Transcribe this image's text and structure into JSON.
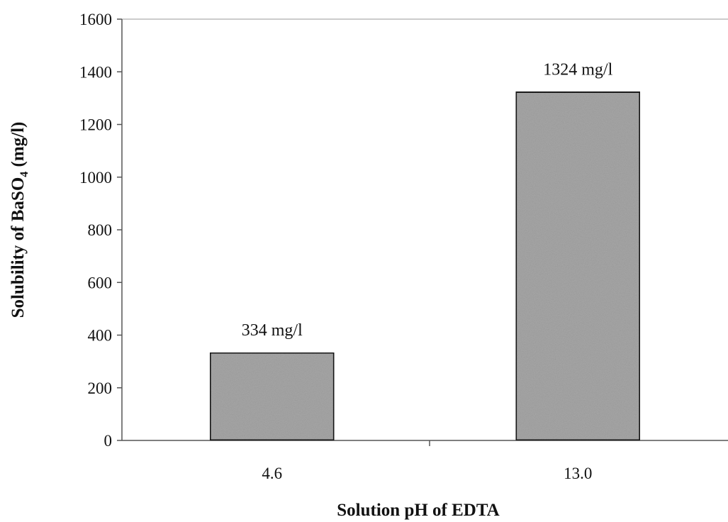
{
  "chart_data": {
    "type": "bar",
    "categories": [
      "4.6",
      "13.0"
    ],
    "values": [
      334,
      1324
    ],
    "data_labels": [
      "334 mg/l",
      "1324 mg/l"
    ],
    "xlabel": "Solution pH of EDTA",
    "ylabel": {
      "prefix": "Solubility of BaSO",
      "subscript": "4",
      "suffix": " (mg/l)"
    },
    "ylim": [
      0,
      1600
    ],
    "yticks": [
      0,
      200,
      400,
      600,
      800,
      1000,
      1200,
      1400,
      1600
    ],
    "grid": false,
    "legend": "none",
    "colors": {
      "bar_fill": "#a7a7a7",
      "bar_stroke": "#1a1a1a",
      "axis": "#555555",
      "text": "#111111"
    }
  }
}
